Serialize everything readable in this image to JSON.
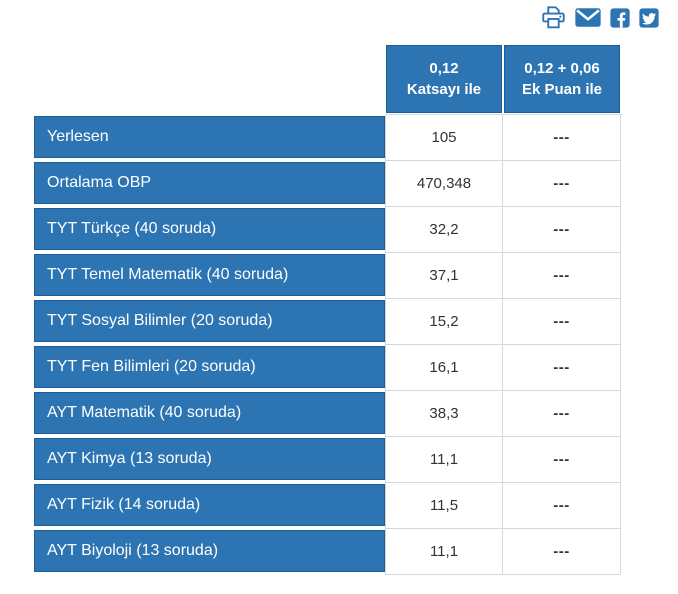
{
  "colors": {
    "primary_blue": "#2d74b3",
    "cell_border_blue": "#1c5d97",
    "grid_line": "#d8d8d8",
    "value_text": "#333333"
  },
  "toolbar": {
    "icons": [
      {
        "name": "print-icon"
      },
      {
        "name": "email-icon"
      },
      {
        "name": "facebook-icon"
      },
      {
        "name": "twitter-icon"
      }
    ]
  },
  "table": {
    "column_headers": [
      {
        "line1": "0,12",
        "line2": "Katsayı ile"
      },
      {
        "line1": "0,12 + 0,06",
        "line2": "Ek Puan ile"
      }
    ],
    "rows": [
      {
        "label": "Yerlesen",
        "katsayi": "105",
        "ek_puan": "---"
      },
      {
        "label": "Ortalama OBP",
        "katsayi": "470,348",
        "ek_puan": "---"
      },
      {
        "label": "TYT Türkçe (40 soruda)",
        "katsayi": "32,2",
        "ek_puan": "---"
      },
      {
        "label": "TYT Temel Matematik (40 soruda)",
        "katsayi": "37,1",
        "ek_puan": "---"
      },
      {
        "label": "TYT Sosyal Bilimler (20 soruda)",
        "katsayi": "15,2",
        "ek_puan": "---"
      },
      {
        "label": "TYT Fen Bilimleri (20 soruda)",
        "katsayi": "16,1",
        "ek_puan": "---"
      },
      {
        "label": "AYT Matematik (40 soruda)",
        "katsayi": "38,3",
        "ek_puan": "---"
      },
      {
        "label": "AYT Kimya (13 soruda)",
        "katsayi": "11,1",
        "ek_puan": "---"
      },
      {
        "label": "AYT Fizik (14 soruda)",
        "katsayi": "11,5",
        "ek_puan": "---"
      },
      {
        "label": "AYT Biyoloji (13 soruda)",
        "katsayi": "11,1",
        "ek_puan": "---"
      }
    ]
  }
}
